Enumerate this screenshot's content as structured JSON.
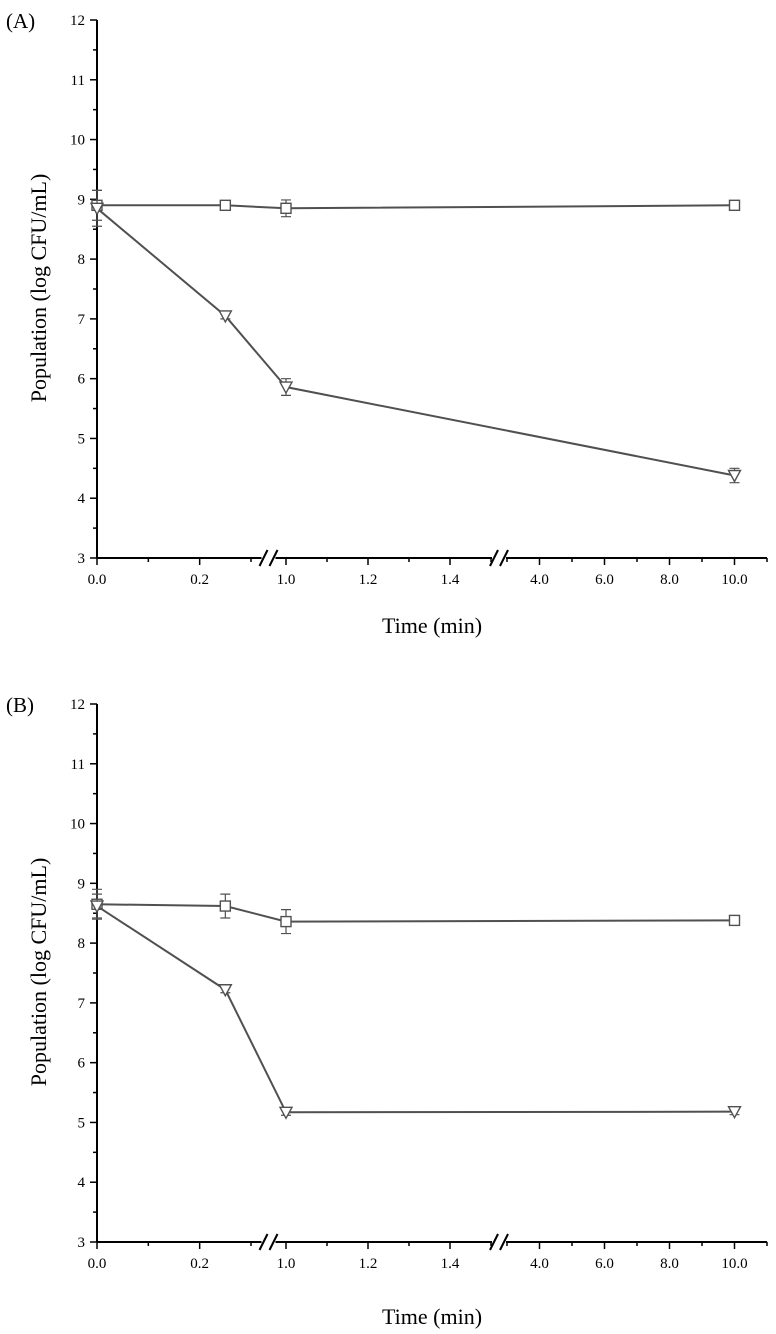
{
  "chart_data": [
    {
      "type": "line",
      "panel_label": "(A)",
      "xlabel": "Time (min)",
      "ylabel": "Population (log CFU/mL)",
      "ylim": [
        3,
        12
      ],
      "yticks": [
        "3",
        "4",
        "5",
        "6",
        "7",
        "8",
        "9",
        "10",
        "11",
        "12"
      ],
      "x_axis_break": "broken axis between 0.2 and 1.0 and between 1.4 and 4.0",
      "xticks": [
        "0.0",
        "0.2",
        "1.0",
        "1.2",
        "1.4",
        "4.0",
        "6.0",
        "8.0",
        "10.0"
      ],
      "x": [
        0,
        0.25,
        1.0,
        10.0
      ],
      "grid": false,
      "series": [
        {
          "marker": "square",
          "values": [
            8.9,
            8.9,
            8.85,
            8.9
          ],
          "errors": [
            0.25,
            0.06,
            0.14,
            0.06
          ]
        },
        {
          "marker": "triangle-down",
          "values": [
            8.85,
            7.05,
            5.86,
            4.38
          ],
          "errors": [
            0.3,
            0.05,
            0.14,
            0.12
          ]
        }
      ]
    },
    {
      "type": "line",
      "panel_label": "(B)",
      "xlabel": "Time (min)",
      "ylabel": "Population (log CFU/mL)",
      "ylim": [
        3,
        12
      ],
      "yticks": [
        "3",
        "4",
        "5",
        "6",
        "7",
        "8",
        "9",
        "10",
        "11",
        "12"
      ],
      "x_axis_break": "broken axis between 0.2 and 1.0 and between 1.4 and 4.0",
      "xticks": [
        "0.0",
        "0.2",
        "1.0",
        "1.2",
        "1.4",
        "4.0",
        "6.0",
        "8.0",
        "10.0"
      ],
      "x": [
        0,
        0.25,
        1.0,
        10.0
      ],
      "grid": false,
      "series": [
        {
          "marker": "square",
          "values": [
            8.65,
            8.62,
            8.36,
            8.38
          ],
          "errors": [
            0.25,
            0.2,
            0.2,
            0.07
          ]
        },
        {
          "marker": "triangle-down",
          "values": [
            8.62,
            7.22,
            5.17,
            5.18
          ],
          "errors": [
            0.2,
            0.05,
            0.05,
            0.05
          ]
        }
      ]
    }
  ]
}
